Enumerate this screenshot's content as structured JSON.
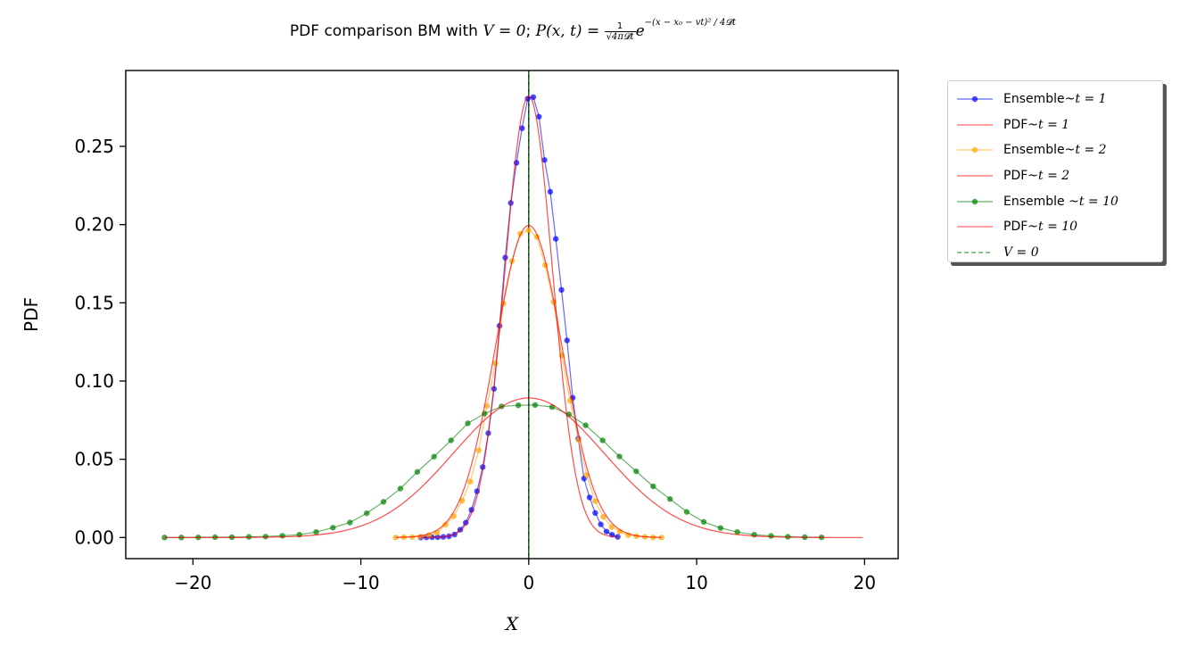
{
  "chart_data": {
    "type": "line",
    "title": {
      "prefix": "PDF comparison BM with ",
      "cond_math": "V = 0",
      "sep": "; ",
      "formula_lhs": "P(x, t) = ",
      "frac_num": "1",
      "frac_den": "√4π𝓓t",
      "base": "e",
      "exponent": "−(x − x₀ − vt)² / 4𝓓t"
    },
    "xlabel": "X",
    "ylabel": "PDF",
    "xlim": [
      -24,
      22
    ],
    "ylim": [
      -0.0135,
      0.2985
    ],
    "x_ticks": [
      -20,
      -10,
      0,
      10,
      20
    ],
    "x_tick_labels": [
      "−20",
      "−10",
      "0",
      "10",
      "20"
    ],
    "y_ticks": [
      0.0,
      0.05,
      0.1,
      0.15,
      0.2,
      0.25
    ],
    "y_tick_labels": [
      "0.00",
      "0.05",
      "0.10",
      "0.15",
      "0.20",
      "0.25"
    ],
    "grid": false,
    "legend_position": "outside-right-top",
    "series": [
      {
        "name": "Ensemble~t = 1",
        "kind": "ensemble",
        "color": "#0000ff",
        "x": [
          -6.43,
          -6.09,
          -5.76,
          -5.42,
          -5.09,
          -4.75,
          -4.42,
          -4.08,
          -3.75,
          -3.41,
          -3.08,
          -2.74,
          -2.41,
          -2.07,
          -1.74,
          -1.4,
          -1.07,
          -0.73,
          -0.4,
          -0.06,
          0.27,
          0.61,
          0.94,
          1.28,
          1.61,
          1.95,
          2.28,
          2.62,
          2.95,
          3.29,
          3.62,
          3.96,
          4.29,
          4.63,
          4.96,
          5.3
        ],
        "y": [
          0.0,
          0.0001,
          0.0002,
          0.0002,
          0.0004,
          0.0008,
          0.0019,
          0.005,
          0.0095,
          0.0177,
          0.0296,
          0.045,
          0.0667,
          0.095,
          0.1353,
          0.1789,
          0.2138,
          0.2395,
          0.2616,
          0.2805,
          0.2815,
          0.269,
          0.2413,
          0.221,
          0.1909,
          0.1583,
          0.126,
          0.0893,
          0.0632,
          0.0377,
          0.0256,
          0.0157,
          0.0084,
          0.0038,
          0.0018,
          0.0004
        ]
      },
      {
        "name": "PDF~t = 1",
        "kind": "theory",
        "color": "#ff0000",
        "D": 1,
        "t": 1,
        "x_range": [
          -6.43,
          5.3
        ]
      },
      {
        "name": "Ensemble~t = 2",
        "kind": "ensemble",
        "color": "#ffa500",
        "x": [
          -7.93,
          -7.44,
          -6.94,
          -6.45,
          -5.95,
          -5.46,
          -4.96,
          -4.47,
          -3.97,
          -3.48,
          -2.98,
          -2.49,
          -1.99,
          -1.5,
          -1.0,
          -0.51,
          -0.01,
          0.48,
          0.98,
          1.47,
          1.97,
          2.46,
          2.96,
          3.45,
          3.95,
          4.44,
          4.94,
          5.43,
          5.93,
          6.42,
          6.92,
          7.41,
          7.91
        ],
        "y": [
          0.0,
          0.0002,
          0.0003,
          0.0006,
          0.0015,
          0.003,
          0.0082,
          0.0136,
          0.0235,
          0.0358,
          0.0557,
          0.0841,
          0.1113,
          0.1496,
          0.1767,
          0.1942,
          0.1964,
          0.1921,
          0.1741,
          0.1506,
          0.1164,
          0.0874,
          0.0625,
          0.0399,
          0.0232,
          0.0132,
          0.0067,
          0.0038,
          0.0015,
          0.0008,
          0.0004,
          0.0001,
          0.0
        ]
      },
      {
        "name": "PDF~t = 2",
        "kind": "theory",
        "color": "#ff0000",
        "D": 1,
        "t": 2,
        "x_range": [
          -7.93,
          7.91
        ]
      },
      {
        "name": "Ensemble ~t = 10",
        "kind": "ensemble",
        "color": "#008000",
        "x": [
          -21.69,
          -20.69,
          -19.68,
          -18.68,
          -17.68,
          -16.67,
          -15.67,
          -14.67,
          -13.66,
          -12.66,
          -11.66,
          -10.65,
          -9.65,
          -8.65,
          -7.64,
          -6.64,
          -5.64,
          -4.63,
          -3.63,
          -2.63,
          -1.62,
          -0.62,
          0.38,
          1.39,
          2.39,
          3.39,
          4.4,
          5.4,
          6.4,
          7.41,
          8.41,
          9.41,
          10.42,
          11.42,
          12.42,
          13.43,
          14.43,
          15.43,
          16.44,
          17.44
        ],
        "y": [
          0.0,
          0.0,
          0.0001,
          0.0002,
          0.0002,
          0.0004,
          0.0006,
          0.0011,
          0.0018,
          0.0035,
          0.0063,
          0.0096,
          0.0155,
          0.0228,
          0.0313,
          0.0419,
          0.0517,
          0.0621,
          0.073,
          0.0792,
          0.0838,
          0.0845,
          0.0847,
          0.0834,
          0.0787,
          0.0717,
          0.0621,
          0.0518,
          0.0423,
          0.0327,
          0.0246,
          0.0164,
          0.01,
          0.0061,
          0.0035,
          0.0018,
          0.001,
          0.0005,
          0.0002,
          0.0001
        ]
      },
      {
        "name": "PDF~t = 10",
        "kind": "theory",
        "color": "#ff0000",
        "D": 1,
        "t": 10,
        "x_range": [
          -21.69,
          19.9
        ]
      },
      {
        "name": "V = 0",
        "kind": "vline",
        "color": "#008000",
        "x": 0
      }
    ]
  },
  "legend": {
    "items": [
      {
        "prefix": "Ensemble~",
        "math": "t = 1"
      },
      {
        "prefix": "PDF~",
        "math": "t = 1"
      },
      {
        "prefix": "Ensemble~",
        "math": "t = 2"
      },
      {
        "prefix": "PDF~",
        "math": "t = 2"
      },
      {
        "prefix": "Ensemble ~",
        "math": "t = 10"
      },
      {
        "prefix": "PDF~",
        "math": "t = 10"
      },
      {
        "prefix": "",
        "math": "V = 0"
      }
    ]
  }
}
